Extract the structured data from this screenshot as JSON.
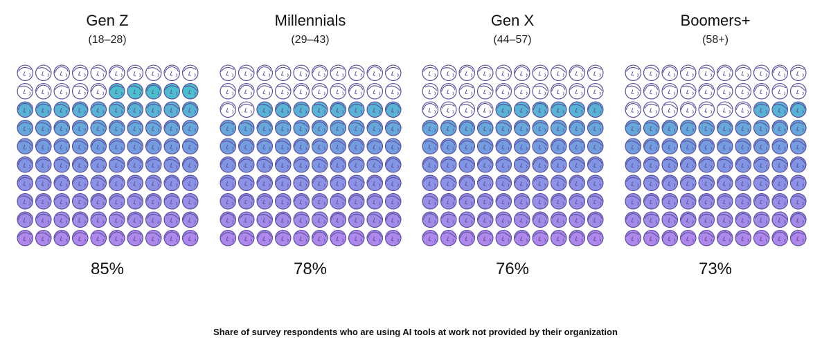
{
  "chart_data": {
    "type": "pictogram",
    "unit": "%",
    "grid": {
      "rows": 10,
      "cols": 10
    },
    "categories": [
      "Gen Z",
      "Millennials",
      "Gen X",
      "Boomers+"
    ],
    "age_ranges": [
      "(18–28)",
      "(29–43)",
      "(44–57)",
      "(58+)"
    ],
    "values": [
      85,
      78,
      76,
      73
    ],
    "value_labels": [
      "85%",
      "78%",
      "76%",
      "73%"
    ],
    "caption": "Share of survey respondents who are using AI tools at work not provided by their organization"
  },
  "colors": {
    "outline": "#5b4f9e",
    "empty_fill": "#ffffff",
    "gradient_top": "#2fc4c4",
    "gradient_mid": "#6f8fe0",
    "gradient_bottom": "#a77ee8"
  },
  "icons": {
    "cell": "person-face-icon"
  }
}
